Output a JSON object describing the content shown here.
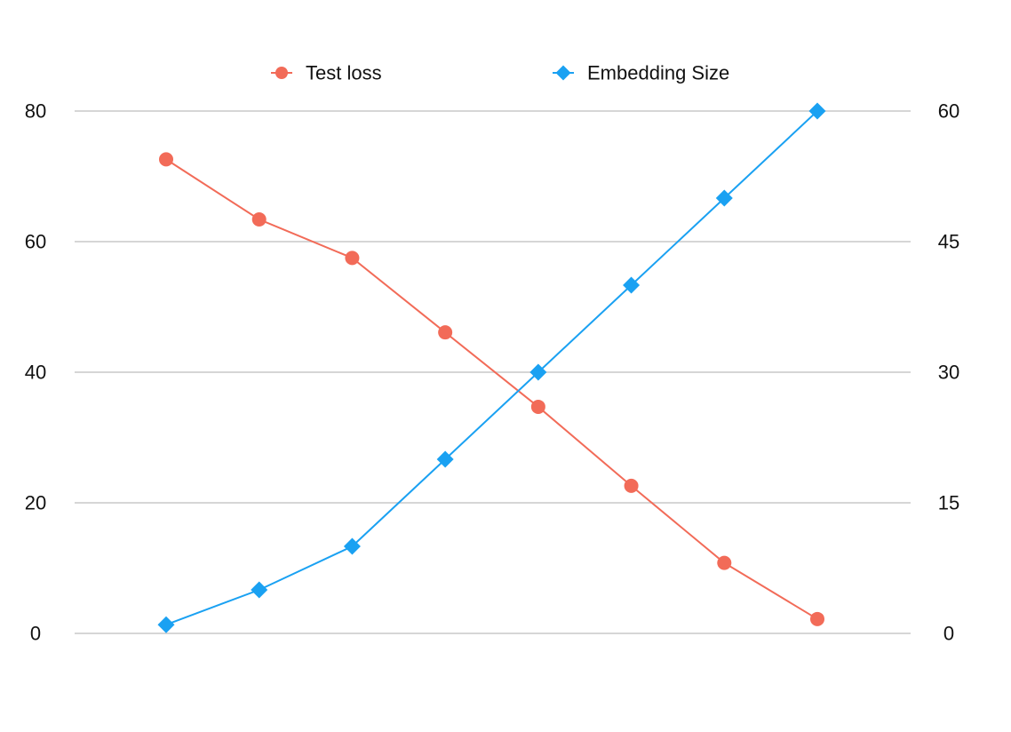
{
  "chart_data": {
    "type": "line",
    "title": "",
    "xlabel": "",
    "ylabel_left": "",
    "ylabel_right": "",
    "x": [
      1,
      2,
      3,
      4,
      5,
      6,
      7,
      8
    ],
    "y_left_ticks": [
      "0",
      "20",
      "40",
      "60",
      "80"
    ],
    "y_right_ticks": [
      "0",
      "15",
      "30",
      "45",
      "60"
    ],
    "y_left_range": [
      0,
      80
    ],
    "y_right_range": [
      0,
      60
    ],
    "grid": true,
    "legend_position": "top-center",
    "series": [
      {
        "name": "Test loss",
        "axis": "left",
        "color": "#f26b58",
        "marker": "circle",
        "values": [
          72.6,
          63.4,
          57.5,
          46.1,
          34.7,
          22.6,
          10.8,
          2.2
        ]
      },
      {
        "name": "Embedding Size",
        "axis": "right",
        "color": "#1aa1f2",
        "marker": "diamond",
        "values": [
          1,
          5,
          10,
          20,
          30,
          40,
          50,
          60
        ]
      }
    ]
  }
}
